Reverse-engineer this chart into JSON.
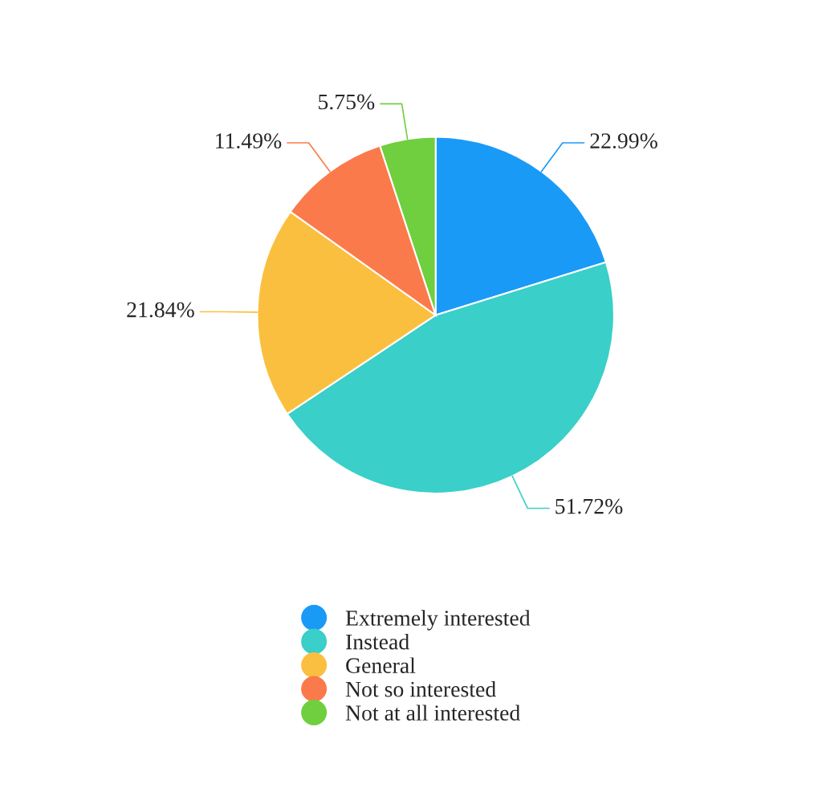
{
  "chart_data": {
    "type": "pie",
    "categories": [
      "Extremely interested",
      "Instead",
      "General",
      "Not so interested",
      "Not at all interested"
    ],
    "values": [
      22.99,
      51.72,
      21.84,
      11.49,
      5.75
    ],
    "colors": [
      "#1a9af7",
      "#3acfc9",
      "#fbbf3f",
      "#fb7a4b",
      "#6fcf3f"
    ],
    "value_labels": [
      "22.99%",
      "51.72%",
      "21.84%",
      "11.49%",
      "5.75%"
    ],
    "legend": "bottom"
  }
}
